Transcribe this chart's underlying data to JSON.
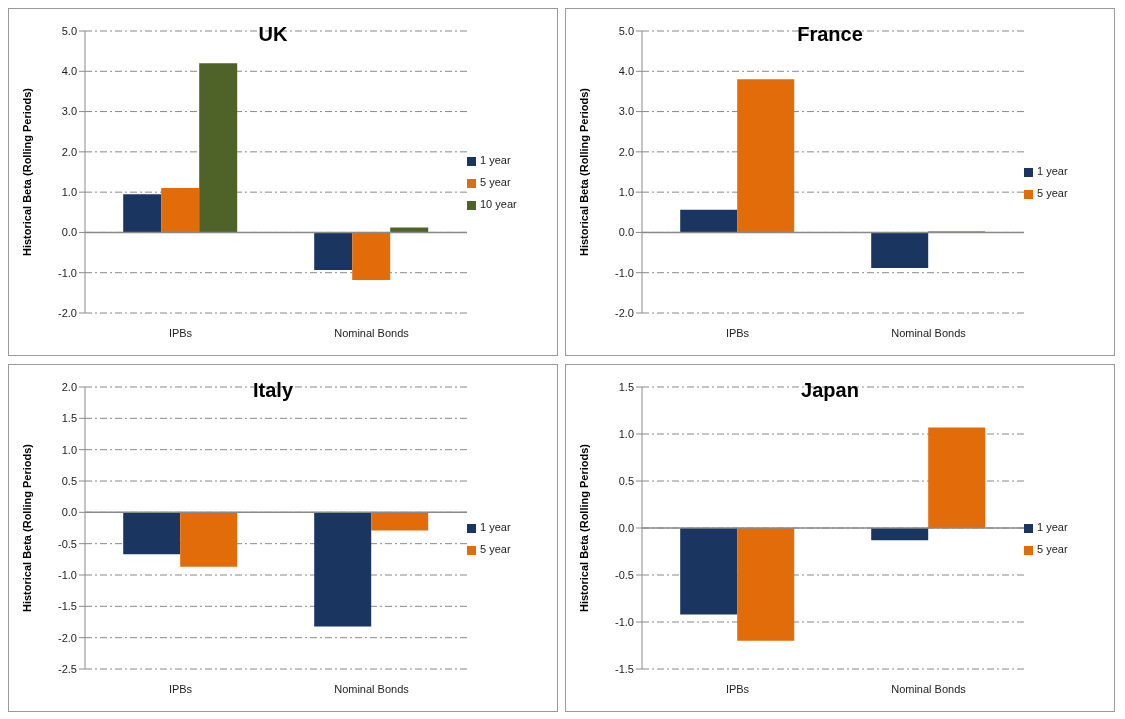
{
  "chart_data": [
    {
      "type": "bar",
      "title": "UK",
      "ylabel": "Historical Beta (Rolling Periods)",
      "categories": [
        "IPBs",
        "Nominal Bonds"
      ],
      "series": [
        {
          "name": "1 year",
          "color": "#1a3660",
          "values": [
            0.95,
            -0.93
          ]
        },
        {
          "name": "5 year",
          "color": "#e36c0a",
          "values": [
            1.1,
            -1.18
          ]
        },
        {
          "name": "10 year",
          "color": "#4f6228",
          "values": [
            4.2,
            0.12
          ]
        }
      ],
      "ylim": [
        -2,
        5
      ],
      "yticks": [
        {
          "value": -2,
          "label": "-2.0"
        },
        {
          "value": -1,
          "label": "-1.0"
        },
        {
          "value": 0,
          "label": "0.0"
        },
        {
          "value": 1,
          "label": "1.0"
        },
        {
          "value": 2,
          "label": "2.0"
        },
        {
          "value": 3,
          "label": "3.0"
        },
        {
          "value": 4,
          "label": "4.0"
        },
        {
          "value": 5,
          "label": "5.0"
        }
      ],
      "grid": "y",
      "legend": "right"
    },
    {
      "type": "bar",
      "title": "France",
      "ylabel": "Historical Beta (Rolling Periods)",
      "categories": [
        "IPBs",
        "Nominal Bonds"
      ],
      "series": [
        {
          "name": "1 year",
          "color": "#1a3660",
          "values": [
            0.56,
            -0.88
          ]
        },
        {
          "name": "5 year",
          "color": "#e36c0a",
          "values": [
            3.8,
            0.03
          ]
        }
      ],
      "ylim": [
        -2,
        5
      ],
      "yticks": [
        {
          "value": -2,
          "label": "-2.0"
        },
        {
          "value": -1,
          "label": "-1.0"
        },
        {
          "value": 0,
          "label": "0.0"
        },
        {
          "value": 1,
          "label": "1.0"
        },
        {
          "value": 2,
          "label": "2.0"
        },
        {
          "value": 3,
          "label": "3.0"
        },
        {
          "value": 4,
          "label": "4.0"
        },
        {
          "value": 5,
          "label": "5.0"
        }
      ],
      "grid": "y",
      "legend": "right"
    },
    {
      "type": "bar",
      "title": "Italy",
      "ylabel": "Historical Beta (Rolling Periods)",
      "categories": [
        "IPBs",
        "Nominal Bonds"
      ],
      "series": [
        {
          "name": "1 year",
          "color": "#1a3660",
          "values": [
            -0.67,
            -1.82
          ]
        },
        {
          "name": "5 year",
          "color": "#e36c0a",
          "values": [
            -0.87,
            -0.29
          ]
        }
      ],
      "ylim": [
        -2.5,
        2
      ],
      "yticks": [
        {
          "value": -2.5,
          "label": "-2.5"
        },
        {
          "value": -2,
          "label": "-2.0"
        },
        {
          "value": -1.5,
          "label": "-1.5"
        },
        {
          "value": -1,
          "label": "-1.0"
        },
        {
          "value": -0.5,
          "label": "-0.5"
        },
        {
          "value": 0,
          "label": "0.0"
        },
        {
          "value": 0.5,
          "label": "0.5"
        },
        {
          "value": 1,
          "label": "1.0"
        },
        {
          "value": 1.5,
          "label": "1.5"
        },
        {
          "value": 2,
          "label": "2.0"
        }
      ],
      "grid": "y",
      "legend": "right"
    },
    {
      "type": "bar",
      "title": "Japan",
      "ylabel": "Historical Beta (Rolling Periods)",
      "categories": [
        "IPBs",
        "Nominal Bonds"
      ],
      "series": [
        {
          "name": "1 year",
          "color": "#1a3660",
          "values": [
            -0.92,
            -0.13
          ]
        },
        {
          "name": "5 year",
          "color": "#e36c0a",
          "values": [
            -1.2,
            1.07
          ]
        }
      ],
      "ylim": [
        -1.5,
        1.5
      ],
      "yticks": [
        {
          "value": -1.5,
          "label": "-1.5"
        },
        {
          "value": -1,
          "label": "-1.0"
        },
        {
          "value": -0.5,
          "label": "-0.5"
        },
        {
          "value": 0,
          "label": "0.0"
        },
        {
          "value": 0.5,
          "label": "0.5"
        },
        {
          "value": 1,
          "label": "1.0"
        },
        {
          "value": 1.5,
          "label": "1.5"
        }
      ],
      "grid": "y",
      "legend": "right"
    }
  ]
}
